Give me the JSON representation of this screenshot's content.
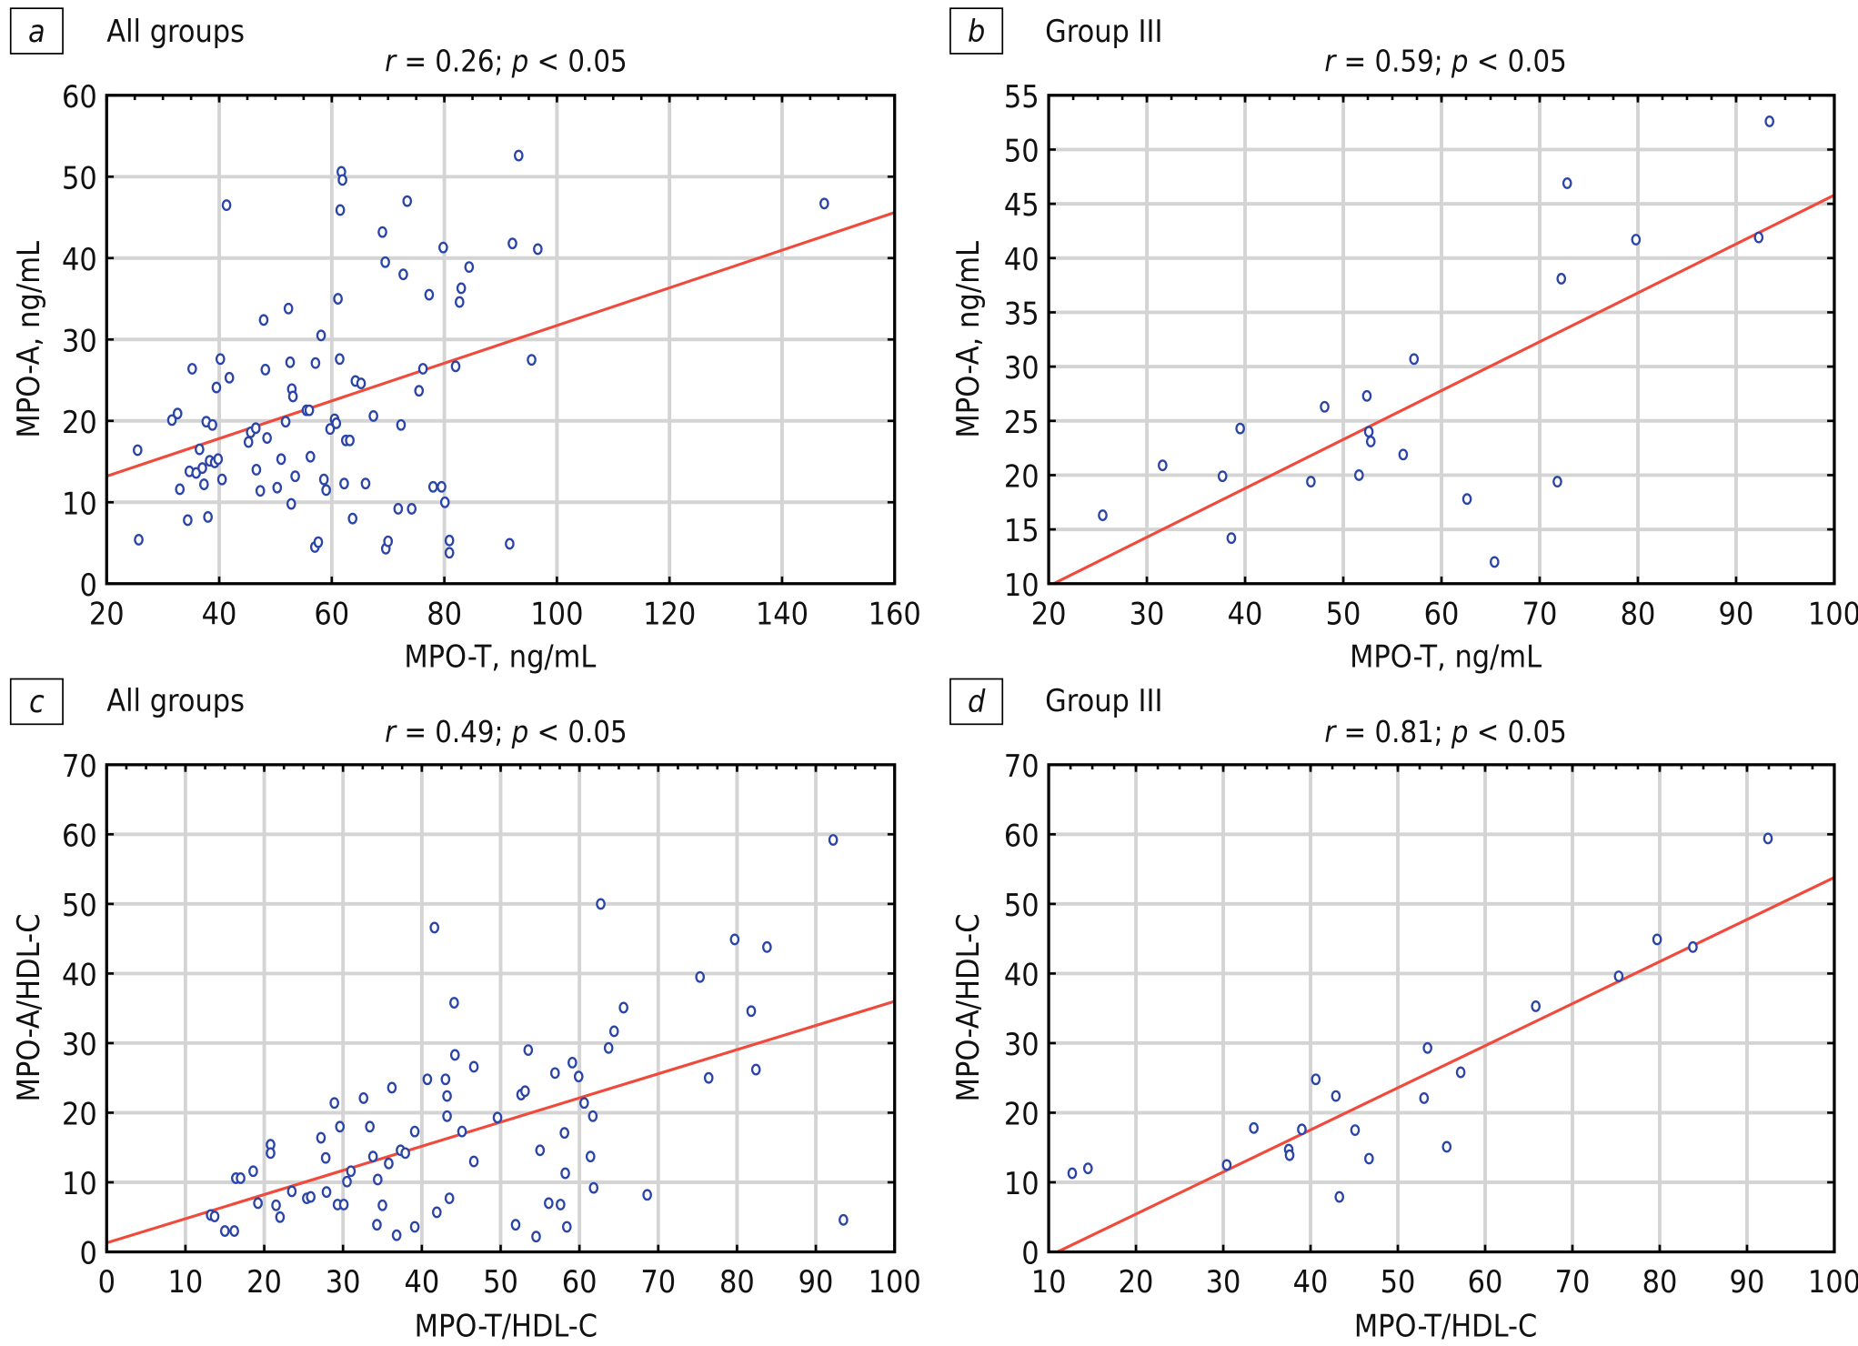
{
  "chart_data": [
    {
      "panel": "a",
      "type": "scatter",
      "group_label": "All groups",
      "title": "r = 0.26; p < 0.05",
      "stat": {
        "r_label": "r",
        "r_value": "0.26",
        "p_label": "p",
        "p_text": "< 0.05"
      },
      "xlabel": "MPO-T, ng/mL",
      "ylabel": "MPO-A, ng/mL",
      "xlim": [
        20,
        160
      ],
      "ylim": [
        0,
        60
      ],
      "xticks": [
        20,
        40,
        60,
        80,
        100,
        120,
        140,
        160
      ],
      "yticks": [
        0,
        10,
        20,
        30,
        40,
        50,
        60
      ],
      "grid": true,
      "regression": {
        "x": [
          20,
          160
        ],
        "y": [
          13.2,
          45.6
        ]
      },
      "points": [
        [
          25.5,
          16.4
        ],
        [
          25.7,
          5.4
        ],
        [
          31.6,
          20.1
        ],
        [
          32.6,
          20.9
        ],
        [
          33,
          11.6
        ],
        [
          34.4,
          7.8
        ],
        [
          34.7,
          13.8
        ],
        [
          35.2,
          26.4
        ],
        [
          35.9,
          13.6
        ],
        [
          36.5,
          16.5
        ],
        [
          37,
          14.2
        ],
        [
          37.3,
          12.2
        ],
        [
          37.7,
          19.9
        ],
        [
          38,
          8.2
        ],
        [
          38.3,
          15.1
        ],
        [
          38.8,
          19.5
        ],
        [
          39.2,
          14.9
        ],
        [
          39.5,
          24.1
        ],
        [
          39.8,
          15.3
        ],
        [
          40.2,
          27.6
        ],
        [
          40.5,
          12.8
        ],
        [
          41.3,
          46.5
        ],
        [
          41.8,
          25.3
        ],
        [
          47.3,
          11.4
        ],
        [
          46.6,
          14.0
        ],
        [
          45.2,
          17.4
        ],
        [
          45.6,
          18.6
        ],
        [
          46.5,
          19.1
        ],
        [
          47.9,
          32.4
        ],
        [
          48.2,
          26.3
        ],
        [
          48.5,
          17.9
        ],
        [
          50.3,
          11.8
        ],
        [
          51.0,
          15.3
        ],
        [
          51.8,
          19.9
        ],
        [
          52.3,
          33.8
        ],
        [
          52.6,
          27.2
        ],
        [
          52.9,
          23.9
        ],
        [
          53.1,
          23.0
        ],
        [
          53.5,
          13.2
        ],
        [
          52.8,
          9.8
        ],
        [
          55.5,
          21.3
        ],
        [
          56,
          21.3
        ],
        [
          56.2,
          15.6
        ],
        [
          57.1,
          27.1
        ],
        [
          57,
          4.5
        ],
        [
          57.6,
          5.1
        ],
        [
          58.1,
          30.5
        ],
        [
          58.6,
          12.8
        ],
        [
          59,
          11.5
        ],
        [
          59.7,
          19.0
        ],
        [
          60.5,
          20.2
        ],
        [
          60.8,
          19.7
        ],
        [
          61.1,
          35.0
        ],
        [
          61.4,
          27.6
        ],
        [
          61.7,
          50.6
        ],
        [
          61.9,
          49.6
        ],
        [
          61.5,
          45.9
        ],
        [
          62.2,
          12.3
        ],
        [
          62.5,
          17.6
        ],
        [
          63.2,
          17.6
        ],
        [
          63.7,
          8.0
        ],
        [
          64.2,
          24.9
        ],
        [
          65.2,
          24.6
        ],
        [
          66,
          12.3
        ],
        [
          67.4,
          20.6
        ],
        [
          69,
          43.2
        ],
        [
          69.5,
          39.5
        ],
        [
          69.6,
          4.3
        ],
        [
          70,
          5.2
        ],
        [
          71.8,
          9.2
        ],
        [
          72.3,
          19.5
        ],
        [
          72.7,
          38.0
        ],
        [
          73.4,
          47.0
        ],
        [
          74.2,
          9.2
        ],
        [
          75.5,
          23.7
        ],
        [
          76.2,
          26.4
        ],
        [
          77.3,
          35.5
        ],
        [
          78,
          11.9
        ],
        [
          79.5,
          11.9
        ],
        [
          79.8,
          41.3
        ],
        [
          80.1,
          10.0
        ],
        [
          80.9,
          5.3
        ],
        [
          80.9,
          3.8
        ],
        [
          82,
          26.7
        ],
        [
          82.7,
          34.6
        ],
        [
          83,
          36.3
        ],
        [
          84.4,
          38.9
        ],
        [
          91.6,
          4.9
        ],
        [
          92.1,
          41.8
        ],
        [
          93.2,
          52.6
        ],
        [
          95.5,
          27.5
        ],
        [
          96.6,
          41.1
        ],
        [
          147.5,
          46.7
        ]
      ]
    },
    {
      "panel": "b",
      "type": "scatter",
      "group_label": "Group III",
      "title": "r = 0.59; p < 0.05",
      "stat": {
        "r_label": "r",
        "r_value": "0.59",
        "p_label": "p",
        "p_text": "< 0.05"
      },
      "xlabel": "MPO-T, ng/mL",
      "ylabel": "MPO-A, ng/mL",
      "xlim": [
        20,
        100
      ],
      "ylim": [
        10,
        55
      ],
      "xticks": [
        20,
        30,
        40,
        50,
        60,
        70,
        80,
        90,
        100
      ],
      "yticks": [
        10,
        15,
        20,
        25,
        30,
        35,
        40,
        45,
        50,
        55
      ],
      "grid": true,
      "regression": {
        "x": [
          20.5,
          100
        ],
        "y": [
          10,
          45.8
        ]
      },
      "points": [
        [
          25.5,
          16.3
        ],
        [
          31.6,
          20.9
        ],
        [
          37.7,
          19.9
        ],
        [
          38.6,
          14.2
        ],
        [
          39.5,
          24.3
        ],
        [
          46.7,
          19.4
        ],
        [
          48.1,
          26.3
        ],
        [
          51.6,
          20.0
        ],
        [
          52.4,
          27.3
        ],
        [
          52.6,
          24.0
        ],
        [
          52.8,
          23.1
        ],
        [
          56.1,
          21.9
        ],
        [
          57.2,
          30.7
        ],
        [
          62.6,
          17.8
        ],
        [
          65.4,
          12.0
        ],
        [
          71.8,
          19.4
        ],
        [
          72.2,
          38.1
        ],
        [
          72.8,
          46.9
        ],
        [
          79.8,
          41.7
        ],
        [
          92.3,
          41.9
        ],
        [
          93.4,
          52.6
        ]
      ]
    },
    {
      "panel": "c",
      "type": "scatter",
      "group_label": "All groups",
      "title": "r = 0.49; p < 0.05",
      "stat": {
        "r_label": "r",
        "r_value": "0.49",
        "p_label": "p",
        "p_text": "< 0.05"
      },
      "xlabel": "MPO-T/HDL-C",
      "ylabel": "MPO-A/HDL-C",
      "xlim": [
        0,
        100
      ],
      "ylim": [
        0,
        70
      ],
      "xticks": [
        0,
        10,
        20,
        30,
        40,
        50,
        60,
        70,
        80,
        90,
        100
      ],
      "yticks": [
        0,
        10,
        20,
        30,
        40,
        50,
        60,
        70
      ],
      "grid": true,
      "regression": {
        "x": [
          0,
          100
        ],
        "y": [
          1.3,
          36.0
        ]
      },
      "points": [
        [
          13.2,
          5.3
        ],
        [
          13.7,
          5.1
        ],
        [
          15,
          3
        ],
        [
          16.2,
          3
        ],
        [
          16.4,
          10.6
        ],
        [
          17,
          10.6
        ],
        [
          18.6,
          11.6
        ],
        [
          19.2,
          7.0
        ],
        [
          20.8,
          15.4
        ],
        [
          20.8,
          14.2
        ],
        [
          21.5,
          6.7
        ],
        [
          22,
          5
        ],
        [
          23.5,
          8.7
        ],
        [
          25.4,
          7.7
        ],
        [
          25.9,
          7.9
        ],
        [
          27.2,
          16.4
        ],
        [
          27.8,
          13.5
        ],
        [
          27.9,
          8.6
        ],
        [
          28.9,
          21.4
        ],
        [
          29.6,
          18
        ],
        [
          29.3,
          6.8
        ],
        [
          30.1,
          6.8
        ],
        [
          31,
          11.6
        ],
        [
          30.5,
          10.1
        ],
        [
          32.6,
          22.1
        ],
        [
          33.4,
          18
        ],
        [
          33.8,
          13.7
        ],
        [
          34.4,
          10.4
        ],
        [
          34.3,
          3.9
        ],
        [
          35,
          6.7
        ],
        [
          35.8,
          12.7
        ],
        [
          36.2,
          23.6
        ],
        [
          36.8,
          2.4
        ],
        [
          37.3,
          14.6
        ],
        [
          37.9,
          14.2
        ],
        [
          39.1,
          3.6
        ],
        [
          39.1,
          17.3
        ],
        [
          40.7,
          24.8
        ],
        [
          41.9,
          5.7
        ],
        [
          41.6,
          46.6
        ],
        [
          43,
          24.8
        ],
        [
          43.2,
          22.4
        ],
        [
          43.2,
          19.5
        ],
        [
          43.5,
          7.7
        ],
        [
          44.1,
          35.8
        ],
        [
          44.2,
          28.3
        ],
        [
          45.1,
          17.3
        ],
        [
          46.6,
          13
        ],
        [
          46.6,
          26.6
        ],
        [
          49.6,
          19.3
        ],
        [
          51.9,
          3.9
        ],
        [
          52.6,
          22.6
        ],
        [
          53.5,
          29
        ],
        [
          53.1,
          23.1
        ],
        [
          54.5,
          2.2
        ],
        [
          55,
          14.6
        ],
        [
          56.1,
          7.0
        ],
        [
          56.9,
          25.7
        ],
        [
          57.6,
          6.8
        ],
        [
          58.1,
          17.1
        ],
        [
          58.2,
          11.3
        ],
        [
          58.4,
          3.6
        ],
        [
          59.1,
          27.2
        ],
        [
          59.9,
          25.2
        ],
        [
          60.6,
          21.4
        ],
        [
          61.4,
          13.7
        ],
        [
          61.7,
          19.5
        ],
        [
          61.8,
          9.2
        ],
        [
          62.7,
          50
        ],
        [
          63.7,
          29.3
        ],
        [
          64.4,
          31.7
        ],
        [
          65.6,
          35.1
        ],
        [
          68.6,
          8.2
        ],
        [
          75.3,
          39.5
        ],
        [
          76.4,
          25.0
        ],
        [
          79.7,
          44.9
        ],
        [
          81.8,
          34.6
        ],
        [
          82.4,
          26.2
        ],
        [
          83.8,
          43.8
        ],
        [
          92.2,
          59.2
        ],
        [
          93.5,
          4.6
        ]
      ]
    },
    {
      "panel": "d",
      "type": "scatter",
      "group_label": "Group III",
      "title": "r = 0.81; p < 0.05",
      "stat": {
        "r_label": "r",
        "r_value": "0.81",
        "p_label": "p",
        "p_text": "< 0.05"
      },
      "xlabel": "MPO-T/HDL-C",
      "ylabel": "MPO-A/HDL-C",
      "xlim": [
        10,
        100
      ],
      "ylim": [
        0,
        70
      ],
      "xticks": [
        10,
        20,
        30,
        40,
        50,
        60,
        70,
        80,
        90,
        100
      ],
      "yticks": [
        0,
        10,
        20,
        30,
        40,
        50,
        60,
        70
      ],
      "grid": true,
      "regression": {
        "x": [
          11,
          100
        ],
        "y": [
          0,
          53.8
        ]
      },
      "points": [
        [
          12.7,
          11.3
        ],
        [
          14.5,
          12
        ],
        [
          30.4,
          12.5
        ],
        [
          33.5,
          17.8
        ],
        [
          37.5,
          14.7
        ],
        [
          37.6,
          13.9
        ],
        [
          39,
          17.6
        ],
        [
          40.6,
          24.8
        ],
        [
          42.9,
          22.4
        ],
        [
          43.3,
          7.9
        ],
        [
          45.1,
          17.5
        ],
        [
          46.7,
          13.4
        ],
        [
          53,
          22.1
        ],
        [
          53.4,
          29.3
        ],
        [
          55.6,
          15.1
        ],
        [
          57.2,
          25.8
        ],
        [
          65.8,
          35.3
        ],
        [
          75.3,
          39.6
        ],
        [
          79.7,
          44.9
        ],
        [
          83.8,
          43.8
        ],
        [
          92.4,
          59.4
        ]
      ]
    }
  ]
}
